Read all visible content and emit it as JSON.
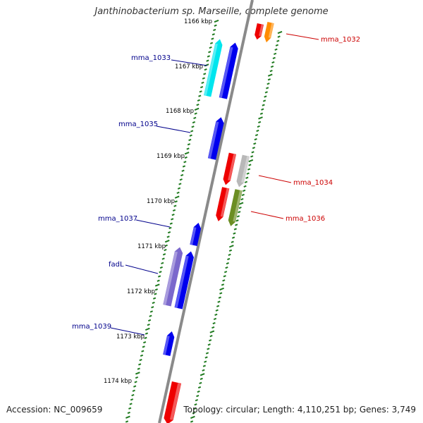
{
  "title": "Janthinobacterium sp. Marseille, complete genome",
  "accession": "Accession: NC_009659",
  "topology": "Topology: circular; Length: 4,110,251 bp; Genes: 3,749",
  "colors": {
    "backbone": "#8a8a8a",
    "tick": "#1f7a1f",
    "plus_strand_label": "#00008b",
    "minus_strand_label": "#cc0000",
    "blue": "#0000ee",
    "cyan": "#00e5ee",
    "red": "#ee0000",
    "orange": "#ff8c00",
    "grey": "#b8b8b8",
    "olive": "#6b8e23",
    "purple": "#7b68cc"
  },
  "kbp_labels": [
    "1166 kbp",
    "1167 kbp",
    "1168 kbp",
    "1169 kbp",
    "1170 kbp",
    "1171 kbp",
    "1172 kbp",
    "1173 kbp",
    "1174 kbp"
  ],
  "gene_labels": [
    "mma_1032",
    "mma_1033",
    "mma_1034",
    "mma_1035",
    "mma_1036",
    "mma_1037",
    "fadL",
    "mma_1039"
  ],
  "features": [
    {
      "color": "red",
      "strand": "minus"
    },
    {
      "color": "orange",
      "strand": "minus"
    },
    {
      "color": "cyan",
      "strand": "plus"
    },
    {
      "color": "blue",
      "strand": "plus"
    },
    {
      "color": "blue",
      "strand": "plus"
    },
    {
      "color": "red",
      "strand": "minus"
    },
    {
      "color": "grey",
      "strand": "minus"
    },
    {
      "color": "red",
      "strand": "minus"
    },
    {
      "color": "olive",
      "strand": "minus"
    },
    {
      "color": "blue",
      "strand": "plus"
    },
    {
      "color": "purple",
      "strand": "plus"
    },
    {
      "color": "blue",
      "strand": "plus"
    },
    {
      "color": "blue",
      "strand": "plus"
    },
    {
      "color": "red",
      "strand": "minus"
    }
  ]
}
